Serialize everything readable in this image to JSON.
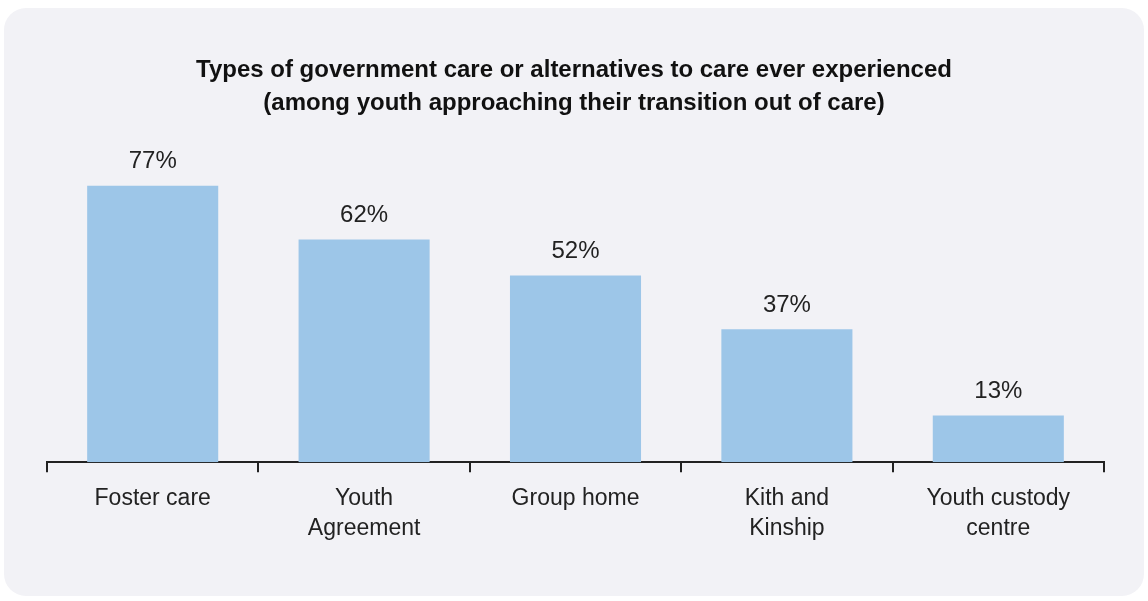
{
  "chart_data": {
    "type": "bar",
    "title": "Types of government care or alternatives to care ever experienced\n(among youth approaching their transition out of care)",
    "categories": [
      "Foster care",
      "Youth Agreement",
      "Group home",
      "Kith and Kinship",
      "Youth custody centre"
    ],
    "values": [
      77,
      62,
      52,
      37,
      13
    ],
    "color": "#9dc6e8",
    "value_labels": [
      "77%",
      "62%",
      "52%",
      "37%",
      "13%"
    ]
  }
}
